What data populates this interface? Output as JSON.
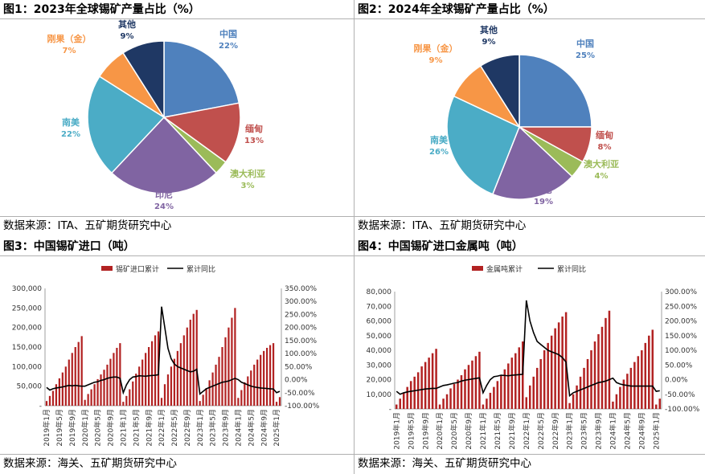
{
  "panels": {
    "p1": {
      "title": "图1：2023年全球锡矿产量占比（%）",
      "source": "数据来源：ITA、五矿期货研究中心"
    },
    "p2": {
      "title": "图2：2024年全球锡矿产量占比（%）",
      "source": "数据来源：ITA、五矿期货研究中心"
    },
    "p3": {
      "title": "图3：中国锡矿进口（吨）",
      "source": "数据来源：海关、五矿期货研究中心"
    },
    "p4": {
      "title": "图4：中国锡矿进口金属吨（吨）",
      "source": "数据来源：海关、五矿期货研究中心"
    }
  },
  "chart_data": [
    {
      "type": "pie",
      "title": "图1：2023年全球锡矿产量占比（%）",
      "slices": [
        {
          "label": "中国",
          "value": 22,
          "text": "22%",
          "color": "#4f81bd"
        },
        {
          "label": "缅甸",
          "value": 13,
          "text": "13%",
          "color": "#c0504d"
        },
        {
          "label": "澳大利亚",
          "value": 3,
          "text": "3%",
          "color": "#9bbb59"
        },
        {
          "label": "印尼",
          "value": 24,
          "text": "24%",
          "color": "#8064a2"
        },
        {
          "label": "南美",
          "value": 22,
          "text": "22%",
          "color": "#4bacc6"
        },
        {
          "label": "刚果（金）",
          "value": 7,
          "text": "7%",
          "color": "#f79646"
        },
        {
          "label": "其他",
          "value": 9,
          "text": "9%",
          "color": "#1f3864"
        }
      ]
    },
    {
      "type": "pie",
      "title": "图2：2024年全球锡矿产量占比（%）",
      "slices": [
        {
          "label": "中国",
          "value": 25,
          "text": "25%",
          "color": "#4f81bd"
        },
        {
          "label": "缅甸",
          "value": 8,
          "text": "8%",
          "color": "#c0504d"
        },
        {
          "label": "澳大利亚",
          "value": 4,
          "text": "4%",
          "color": "#9bbb59"
        },
        {
          "label": "印尼",
          "value": 19,
          "text": "19%",
          "color": "#8064a2"
        },
        {
          "label": "南美",
          "value": 26,
          "text": "26%",
          "color": "#4bacc6"
        },
        {
          "label": "刚果（金）",
          "value": 9,
          "text": "9%",
          "color": "#f79646"
        },
        {
          "label": "其他",
          "value": 9,
          "text": "9%",
          "color": "#1f3864"
        }
      ]
    },
    {
      "type": "bar",
      "title": "图3：中国锡矿进口（吨）",
      "legend": [
        "锡矿进口累计",
        "累计同比"
      ],
      "bar_color": "#b22222",
      "line_color": "#000000",
      "start": "2019年1月",
      "xticks": [
        "2019年1月",
        "2019年5月",
        "2019年9月",
        "2020年1月",
        "2020年5月",
        "2020年9月",
        "2021年1月",
        "2021年5月",
        "2021年9月",
        "2022年1月",
        "2022年5月",
        "2022年9月",
        "2023年1月",
        "2023年5月",
        "2023年9月",
        "2024年1月",
        "2024年5月",
        "2024年9月",
        "2025年1月"
      ],
      "ylim": [
        0,
        300000
      ],
      "yticks": [
        "-",
        "50,000",
        "100,000",
        "150,000",
        "200,000",
        "250,000",
        "300,000"
      ],
      "y2lim": [
        -100,
        350
      ],
      "y2ticks": [
        "-100.00%",
        "-50.00%",
        "0.00%",
        "50.00%",
        "100.00%",
        "150.00%",
        "200.00%",
        "250.00%",
        "300.00%",
        "350.00%"
      ],
      "values": [
        12000,
        25000,
        38000,
        55000,
        70000,
        85000,
        100000,
        118000,
        135000,
        150000,
        163000,
        178000,
        15000,
        30000,
        42000,
        55000,
        68000,
        80000,
        92000,
        105000,
        120000,
        135000,
        148000,
        160000,
        10000,
        25000,
        42000,
        62000,
        82000,
        100000,
        118000,
        135000,
        150000,
        165000,
        180000,
        190000,
        20000,
        55000,
        80000,
        100000,
        120000,
        140000,
        160000,
        180000,
        200000,
        220000,
        235000,
        245000,
        12000,
        28000,
        45000,
        65000,
        85000,
        105000,
        125000,
        150000,
        175000,
        200000,
        225000,
        250000,
        20000,
        40000,
        60000,
        75000,
        90000,
        105000,
        118000,
        130000,
        140000,
        148000,
        155000,
        160000,
        10000,
        22000
      ],
      "yoy": [
        -30,
        -40,
        -35,
        -32,
        -30,
        -28,
        -25,
        -22,
        -24,
        -22,
        -24,
        -25,
        -25,
        -20,
        -15,
        -10,
        -8,
        -3,
        0,
        5,
        8,
        10,
        10,
        5,
        -50,
        -20,
        0,
        10,
        12,
        15,
        14,
        13,
        15,
        16,
        17,
        19,
        280,
        200,
        120,
        80,
        60,
        50,
        45,
        40,
        35,
        30,
        32,
        40,
        -55,
        -45,
        -35,
        -30,
        -25,
        -20,
        -15,
        -10,
        -8,
        -5,
        0,
        5,
        0,
        -10,
        -15,
        -20,
        -25,
        -28,
        -30,
        -32,
        -33,
        -34,
        -35,
        -36,
        -50,
        -45
      ]
    },
    {
      "type": "bar",
      "title": "图4：中国锡矿进口金属吨（吨）",
      "legend": [
        "金属吨累计",
        "累计同比"
      ],
      "bar_color": "#b22222",
      "line_color": "#000000",
      "start": "2019年1月",
      "xticks": [
        "2019年1月",
        "2019年5月",
        "2019年9月",
        "2020年1月",
        "2020年5月",
        "2020年9月",
        "2021年1月",
        "2021年5月",
        "2021年9月",
        "2022年1月",
        "2022年5月",
        "2022年9月",
        "2023年1月",
        "2023年5月",
        "2023年9月",
        "2024年1月",
        "2024年5月",
        "2024年9月",
        "2025年1月"
      ],
      "ylim": [
        0,
        80000
      ],
      "yticks": [
        "-",
        "10,000",
        "20,000",
        "30,000",
        "40,000",
        "50,000",
        "60,000",
        "70,000",
        "80,000"
      ],
      "y2lim": [
        -100,
        300
      ],
      "y2ticks": [
        "-100.00%",
        "-50.00%",
        "0.00%",
        "50.00%",
        "100.00%",
        "150.00%",
        "200.00%",
        "250.00%",
        "300.00%"
      ],
      "values": [
        3000,
        7000,
        11000,
        15000,
        19000,
        22000,
        25000,
        29000,
        32000,
        35000,
        38000,
        41000,
        3000,
        7000,
        10000,
        14000,
        17000,
        20000,
        23000,
        27000,
        30000,
        33000,
        36000,
        39000,
        3000,
        7000,
        11000,
        15000,
        19000,
        23000,
        27000,
        31000,
        35000,
        38000,
        42000,
        46000,
        8000,
        16000,
        22000,
        28000,
        34000,
        40000,
        45000,
        50000,
        55000,
        59000,
        63000,
        66000,
        4000,
        10000,
        16000,
        22000,
        28000,
        34000,
        40000,
        46000,
        51000,
        56000,
        62000,
        67000,
        5000,
        10000,
        15000,
        20000,
        24000,
        28000,
        32000,
        36000,
        40000,
        45000,
        50000,
        54000,
        3000,
        7000
      ],
      "yoy": [
        -40,
        -50,
        -45,
        -42,
        -40,
        -38,
        -36,
        -34,
        -32,
        -31,
        -30,
        -30,
        -25,
        -20,
        -18,
        -15,
        -12,
        -10,
        -5,
        -2,
        0,
        2,
        4,
        6,
        -45,
        -20,
        0,
        10,
        12,
        15,
        14,
        13,
        15,
        16,
        17,
        18,
        270,
        200,
        160,
        130,
        120,
        110,
        100,
        95,
        90,
        85,
        75,
        60,
        -55,
        -45,
        -40,
        -35,
        -30,
        -25,
        -20,
        -15,
        -10,
        -8,
        -5,
        0,
        5,
        -10,
        -15,
        -18,
        -20,
        -22,
        -22,
        -22,
        -22,
        -22,
        -22,
        -22,
        -40,
        -38
      ]
    }
  ]
}
